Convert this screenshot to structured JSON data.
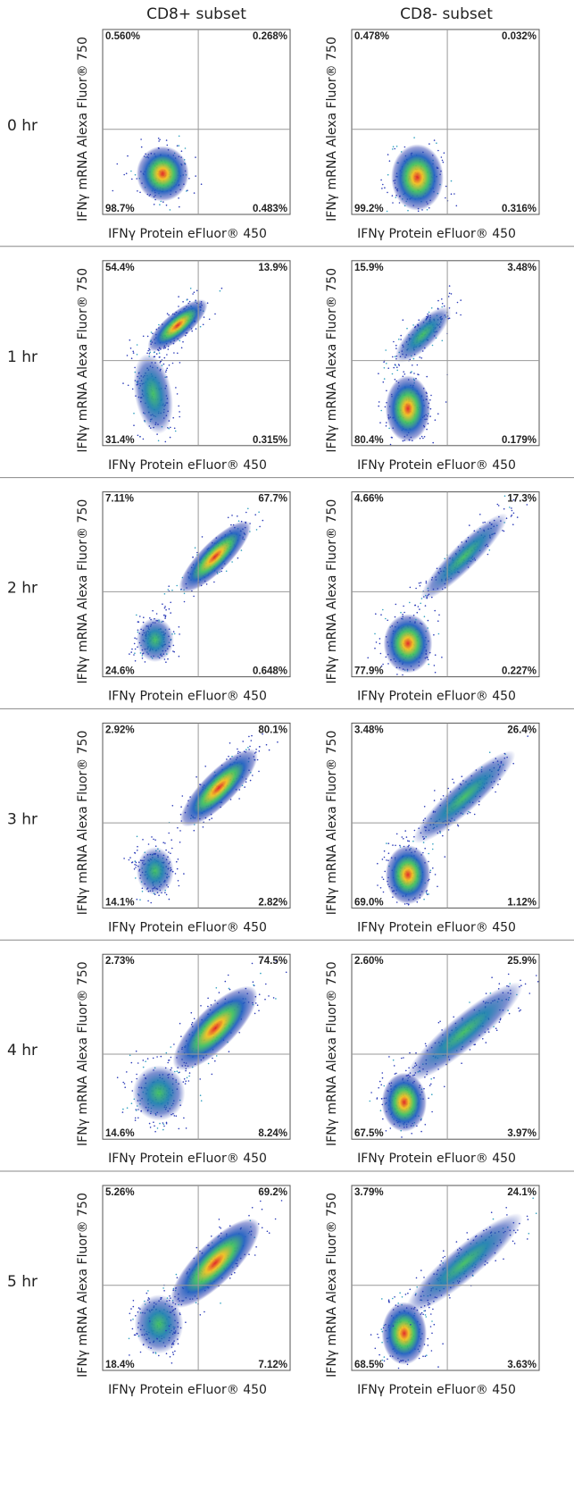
{
  "columns": [
    "CD8+ subset",
    "CD8- subset"
  ],
  "x_label": "IFNγ Protein eFluor® 450",
  "y_label": "IFNγ mRNA Alexa Fluor® 750",
  "rows": [
    {
      "label": "0 hr",
      "panels": [
        {
          "ul": "0.560%",
          "ur": "0.268%",
          "ll": "98.7%",
          "lr": "0.483%"
        },
        {
          "ul": "0.478%",
          "ur": "0.032%",
          "ll": "99.2%",
          "lr": "0.316%"
        }
      ]
    },
    {
      "label": "1 hr",
      "panels": [
        {
          "ul": "54.4%",
          "ur": "13.9%",
          "ll": "31.4%",
          "lr": "0.315%"
        },
        {
          "ul": "15.9%",
          "ur": "3.48%",
          "ll": "80.4%",
          "lr": "0.179%"
        }
      ]
    },
    {
      "label": "2 hr",
      "panels": [
        {
          "ul": "7.11%",
          "ur": "67.7%",
          "ll": "24.6%",
          "lr": "0.648%"
        },
        {
          "ul": "4.66%",
          "ur": "17.3%",
          "ll": "77.9%",
          "lr": "0.227%"
        }
      ]
    },
    {
      "label": "3 hr",
      "panels": [
        {
          "ul": "2.92%",
          "ur": "80.1%",
          "ll": "14.1%",
          "lr": "2.82%"
        },
        {
          "ul": "3.48%",
          "ur": "26.4%",
          "ll": "69.0%",
          "lr": "1.12%"
        }
      ]
    },
    {
      "label": "4 hr",
      "panels": [
        {
          "ul": "2.73%",
          "ur": "74.5%",
          "ll": "14.6%",
          "lr": "8.24%"
        },
        {
          "ul": "2.60%",
          "ur": "25.9%",
          "ll": "67.5%",
          "lr": "3.97%"
        }
      ]
    },
    {
      "label": "5 hr",
      "panels": [
        {
          "ul": "5.26%",
          "ur": "69.2%",
          "ll": "18.4%",
          "lr": "7.12%"
        },
        {
          "ul": "3.79%",
          "ur": "24.1%",
          "ll": "68.5%",
          "lr": "3.63%"
        }
      ]
    }
  ]
}
